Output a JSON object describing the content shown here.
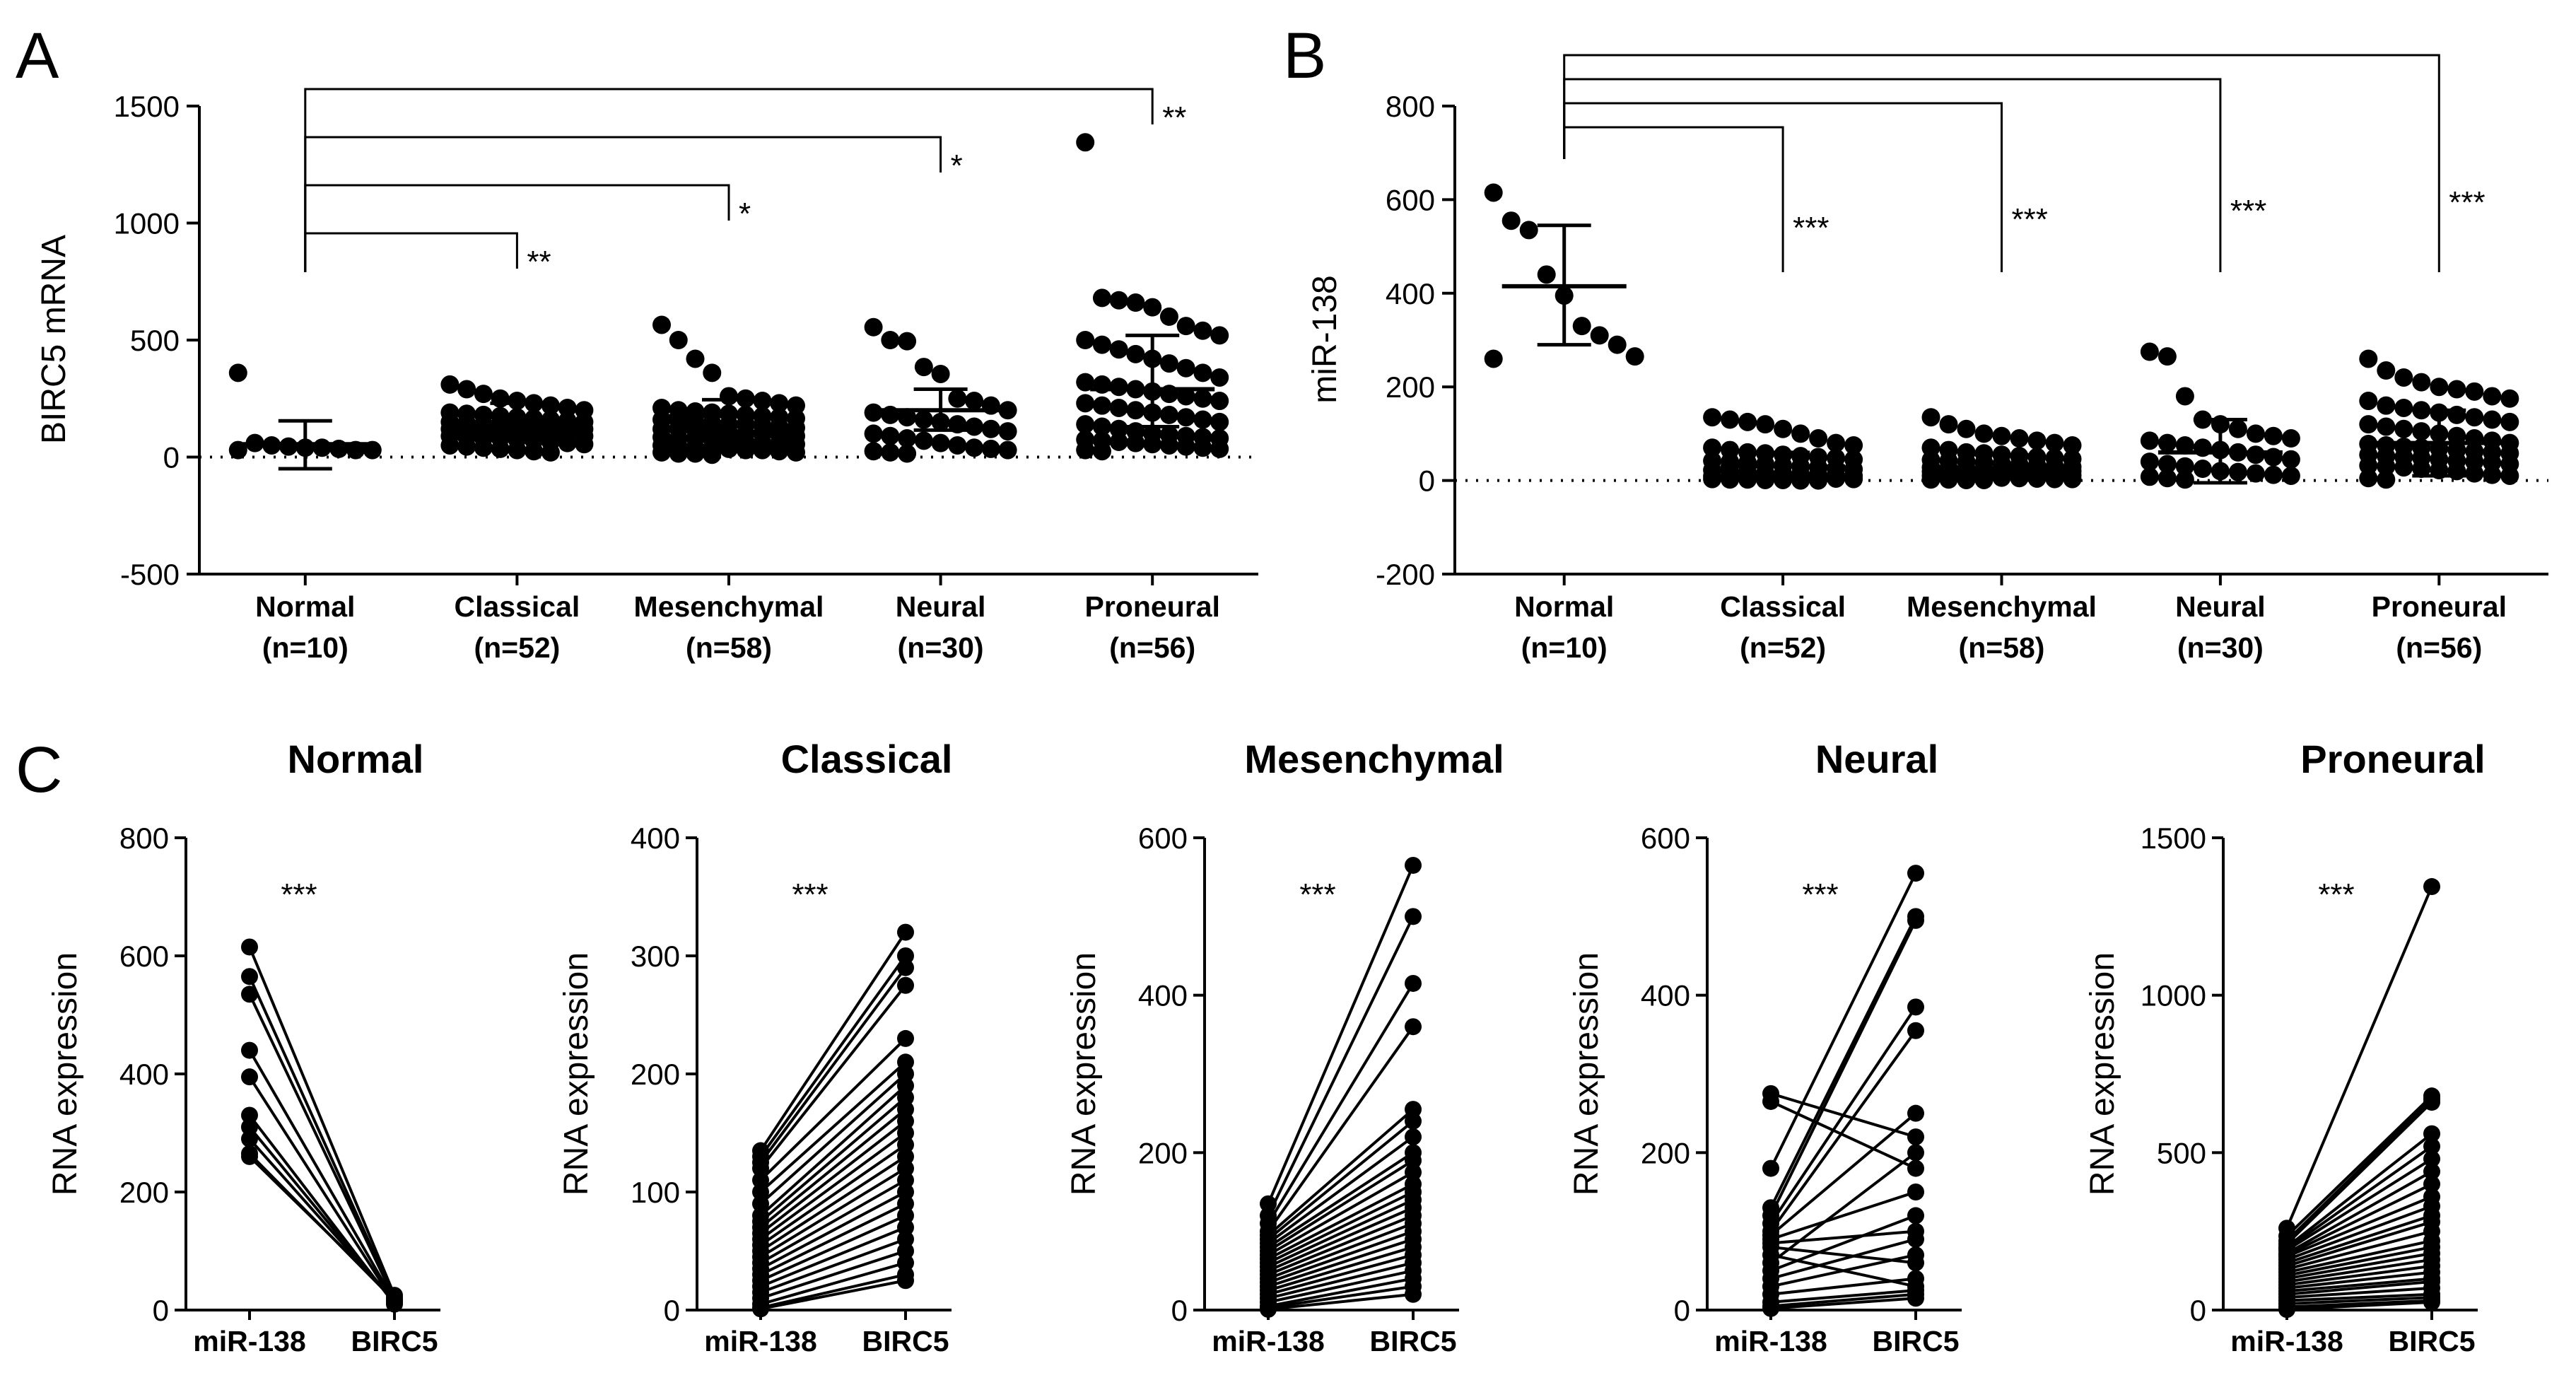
{
  "panels": {
    "A": {
      "letter": "A",
      "ylabel": "BIRC5 mRNA"
    },
    "B": {
      "letter": "B",
      "ylabel": "miR-138"
    },
    "C": {
      "letter": "C",
      "ylabel": "RNA expression"
    }
  },
  "chart_data": [
    {
      "id": "A",
      "type": "scatter",
      "title": "",
      "ylabel": "BIRC5 mRNA",
      "ylim": [
        -500,
        1500
      ],
      "yticks": [
        -500,
        0,
        500,
        1000,
        1500
      ],
      "reference_line": 0,
      "categories": [
        "Normal",
        "Classical",
        "Mesenchymal",
        "Neural",
        "Proneural"
      ],
      "category_counts": [
        "(n=10)",
        "(n=52)",
        "(n=58)",
        "(n=30)",
        "(n=56)"
      ],
      "mean": [
        55,
        150,
        175,
        200,
        290
      ],
      "sd_low": [
        -50,
        90,
        105,
        115,
        130
      ],
      "sd_high": [
        155,
        230,
        245,
        290,
        520
      ],
      "points": [
        [
          360,
          60,
          50,
          45,
          40,
          40,
          35,
          30,
          30,
          30
        ],
        [
          310,
          290,
          270,
          250,
          240,
          230,
          220,
          210,
          200,
          190,
          185,
          180,
          175,
          170,
          165,
          160,
          155,
          150,
          150,
          145,
          140,
          140,
          135,
          130,
          130,
          125,
          120,
          120,
          115,
          110,
          110,
          105,
          100,
          100,
          95,
          90,
          90,
          85,
          80,
          80,
          75,
          70,
          65,
          60,
          55,
          50,
          45,
          40,
          35,
          30,
          25,
          20
        ],
        [
          565,
          500,
          420,
          360,
          260,
          250,
          240,
          230,
          220,
          210,
          200,
          195,
          190,
          185,
          180,
          175,
          170,
          165,
          160,
          155,
          150,
          145,
          140,
          140,
          135,
          130,
          125,
          120,
          120,
          115,
          110,
          105,
          100,
          100,
          95,
          90,
          85,
          80,
          80,
          75,
          70,
          65,
          60,
          60,
          55,
          50,
          45,
          40,
          40,
          35,
          30,
          30,
          25,
          20,
          20,
          15,
          15,
          10
        ],
        [
          555,
          500,
          495,
          385,
          355,
          250,
          240,
          220,
          200,
          190,
          180,
          170,
          160,
          150,
          140,
          130,
          120,
          110,
          100,
          90,
          80,
          70,
          60,
          50,
          40,
          35,
          30,
          25,
          20,
          15
        ],
        [
          1345,
          680,
          670,
          660,
          640,
          600,
          560,
          540,
          520,
          500,
          480,
          460,
          440,
          420,
          400,
          380,
          360,
          340,
          320,
          310,
          300,
          290,
          280,
          270,
          260,
          250,
          240,
          230,
          220,
          210,
          200,
          190,
          180,
          170,
          160,
          150,
          140,
          130,
          120,
          110,
          100,
          95,
          90,
          85,
          80,
          75,
          70,
          65,
          60,
          55,
          50,
          45,
          40,
          35,
          30,
          25
        ]
      ],
      "comparisons": [
        {
          "from": "Normal",
          "to": "Classical",
          "label": "**"
        },
        {
          "from": "Normal",
          "to": "Mesenchymal",
          "label": "*"
        },
        {
          "from": "Normal",
          "to": "Neural",
          "label": "*"
        },
        {
          "from": "Normal",
          "to": "Proneural",
          "label": "**"
        }
      ]
    },
    {
      "id": "B",
      "type": "scatter",
      "title": "",
      "ylabel": "miR-138",
      "ylim": [
        -200,
        800
      ],
      "yticks": [
        -200,
        0,
        200,
        400,
        600,
        800
      ],
      "reference_line": 0,
      "categories": [
        "Normal",
        "Classical",
        "Mesenchymal",
        "Neural",
        "Proneural"
      ],
      "category_counts": [
        "(n=10)",
        "(n=52)",
        "(n=58)",
        "(n=30)",
        "(n=56)"
      ],
      "mean": [
        415,
        30,
        25,
        60,
        80
      ],
      "sd_low": [
        290,
        0,
        5,
        -5,
        10
      ],
      "sd_high": [
        545,
        60,
        55,
        130,
        150
      ],
      "points": [
        [
          615,
          555,
          535,
          440,
          395,
          330,
          310,
          290,
          265,
          260
        ],
        [
          135,
          130,
          125,
          120,
          110,
          100,
          90,
          80,
          75,
          70,
          65,
          60,
          58,
          55,
          52,
          50,
          48,
          45,
          42,
          40,
          38,
          35,
          32,
          30,
          28,
          25,
          24,
          22,
          20,
          18,
          16,
          15,
          14,
          12,
          11,
          10,
          9,
          8,
          7,
          6,
          5,
          5,
          4,
          4,
          3,
          3,
          2,
          2,
          1,
          1,
          0,
          0
        ],
        [
          135,
          120,
          110,
          100,
          95,
          90,
          85,
          80,
          75,
          70,
          65,
          60,
          58,
          55,
          52,
          50,
          48,
          46,
          44,
          42,
          40,
          38,
          36,
          34,
          32,
          30,
          29,
          28,
          27,
          26,
          25,
          24,
          23,
          22,
          21,
          20,
          19,
          18,
          17,
          16,
          15,
          14,
          13,
          12,
          11,
          10,
          9,
          8,
          7,
          6,
          5,
          4,
          3,
          3,
          2,
          2,
          1,
          1
        ],
        [
          275,
          265,
          180,
          130,
          120,
          110,
          100,
          95,
          90,
          85,
          80,
          75,
          70,
          65,
          60,
          55,
          50,
          45,
          40,
          35,
          30,
          25,
          20,
          18,
          15,
          12,
          10,
          8,
          5,
          2
        ],
        [
          260,
          235,
          220,
          210,
          200,
          195,
          190,
          180,
          175,
          170,
          160,
          155,
          150,
          145,
          140,
          135,
          130,
          125,
          120,
          115,
          110,
          105,
          100,
          95,
          90,
          85,
          80,
          78,
          75,
          72,
          70,
          68,
          65,
          62,
          60,
          58,
          55,
          52,
          50,
          48,
          45,
          42,
          40,
          38,
          35,
          32,
          30,
          28,
          25,
          22,
          20,
          15,
          12,
          10,
          5,
          2
        ]
      ],
      "comparisons": [
        {
          "from": "Normal",
          "to": "Classical",
          "label": "***"
        },
        {
          "from": "Normal",
          "to": "Mesenchymal",
          "label": "***"
        },
        {
          "from": "Normal",
          "to": "Neural",
          "label": "***"
        },
        {
          "from": "Normal",
          "to": "Proneural",
          "label": "***"
        }
      ]
    },
    {
      "id": "C-Normal",
      "type": "line",
      "title": "Normal",
      "ylabel": "RNA expression",
      "categories": [
        "miR-138",
        "BIRC5"
      ],
      "ylim": [
        0,
        800
      ],
      "yticks": [
        0,
        200,
        400,
        600,
        800
      ],
      "significance": "***",
      "pairs": [
        [
          615,
          25
        ],
        [
          565,
          20
        ],
        [
          535,
          18
        ],
        [
          440,
          15
        ],
        [
          395,
          12
        ],
        [
          330,
          10
        ],
        [
          310,
          12
        ],
        [
          290,
          14
        ],
        [
          265,
          16
        ],
        [
          260,
          20
        ]
      ]
    },
    {
      "id": "C-Classical",
      "type": "line",
      "title": "Classical",
      "ylabel": "RNA expression",
      "categories": [
        "miR-138",
        "BIRC5"
      ],
      "ylim": [
        0,
        400
      ],
      "yticks": [
        0,
        100,
        200,
        300,
        400
      ],
      "significance": "***",
      "pairs": [
        [
          135,
          320
        ],
        [
          130,
          300
        ],
        [
          125,
          290
        ],
        [
          120,
          275
        ],
        [
          110,
          230
        ],
        [
          100,
          210
        ],
        [
          90,
          200
        ],
        [
          80,
          190
        ],
        [
          75,
          180
        ],
        [
          70,
          170
        ],
        [
          65,
          160
        ],
        [
          60,
          150
        ],
        [
          55,
          140
        ],
        [
          50,
          130
        ],
        [
          45,
          120
        ],
        [
          40,
          110
        ],
        [
          35,
          100
        ],
        [
          30,
          90
        ],
        [
          25,
          80
        ],
        [
          20,
          70
        ],
        [
          15,
          60
        ],
        [
          10,
          50
        ],
        [
          5,
          40
        ],
        [
          2,
          30
        ],
        [
          1,
          25
        ]
      ]
    },
    {
      "id": "C-Mesenchymal",
      "type": "line",
      "title": "Mesenchymal",
      "ylabel": "RNA expression",
      "categories": [
        "miR-138",
        "BIRC5"
      ],
      "ylim": [
        0,
        600
      ],
      "yticks": [
        0,
        200,
        400,
        600
      ],
      "significance": "***",
      "pairs": [
        [
          135,
          565
        ],
        [
          120,
          500
        ],
        [
          110,
          415
        ],
        [
          100,
          360
        ],
        [
          95,
          255
        ],
        [
          90,
          240
        ],
        [
          85,
          220
        ],
        [
          80,
          200
        ],
        [
          75,
          190
        ],
        [
          70,
          175
        ],
        [
          65,
          160
        ],
        [
          60,
          150
        ],
        [
          55,
          140
        ],
        [
          50,
          130
        ],
        [
          45,
          120
        ],
        [
          40,
          110
        ],
        [
          35,
          100
        ],
        [
          30,
          90
        ],
        [
          25,
          80
        ],
        [
          20,
          70
        ],
        [
          15,
          60
        ],
        [
          10,
          50
        ],
        [
          5,
          40
        ],
        [
          3,
          30
        ],
        [
          1,
          20
        ]
      ]
    },
    {
      "id": "C-Neural",
      "type": "line",
      "title": "Neural",
      "ylabel": "RNA expression",
      "categories": [
        "miR-138",
        "BIRC5"
      ],
      "ylim": [
        0,
        600
      ],
      "yticks": [
        0,
        200,
        400,
        600
      ],
      "significance": "***",
      "pairs": [
        [
          275,
          220
        ],
        [
          265,
          180
        ],
        [
          180,
          555
        ],
        [
          130,
          500
        ],
        [
          120,
          495
        ],
        [
          110,
          385
        ],
        [
          100,
          355
        ],
        [
          95,
          250
        ],
        [
          90,
          150
        ],
        [
          85,
          100
        ],
        [
          80,
          60
        ],
        [
          70,
          30
        ],
        [
          60,
          200
        ],
        [
          50,
          120
        ],
        [
          40,
          90
        ],
        [
          30,
          70
        ],
        [
          20,
          40
        ],
        [
          10,
          25
        ],
        [
          5,
          20
        ],
        [
          2,
          15
        ]
      ]
    },
    {
      "id": "C-Proneural",
      "type": "line",
      "title": "Proneural",
      "ylabel": "RNA expression",
      "categories": [
        "miR-138",
        "BIRC5"
      ],
      "ylim": [
        0,
        1500
      ],
      "yticks": [
        0,
        500,
        1000,
        1500
      ],
      "significance": "***",
      "pairs": [
        [
          260,
          1345
        ],
        [
          235,
          680
        ],
        [
          220,
          670
        ],
        [
          210,
          660
        ],
        [
          200,
          560
        ],
        [
          195,
          520
        ],
        [
          190,
          480
        ],
        [
          180,
          440
        ],
        [
          175,
          400
        ],
        [
          170,
          360
        ],
        [
          160,
          330
        ],
        [
          150,
          300
        ],
        [
          140,
          280
        ],
        [
          130,
          250
        ],
        [
          120,
          220
        ],
        [
          110,
          200
        ],
        [
          100,
          180
        ],
        [
          90,
          160
        ],
        [
          80,
          140
        ],
        [
          70,
          120
        ],
        [
          60,
          100
        ],
        [
          50,
          90
        ],
        [
          40,
          70
        ],
        [
          30,
          50
        ],
        [
          20,
          40
        ],
        [
          10,
          30
        ],
        [
          2,
          25
        ]
      ]
    }
  ]
}
